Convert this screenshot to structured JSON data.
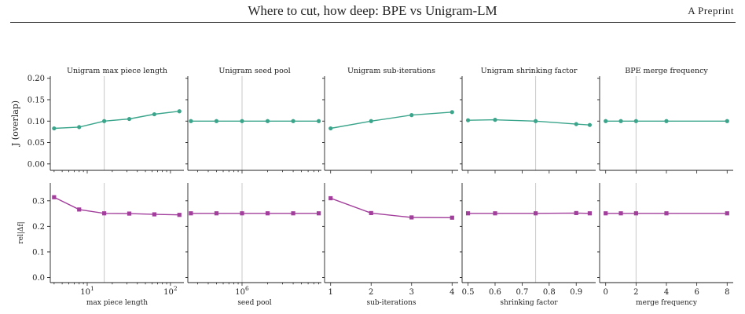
{
  "header": {
    "title": "Where to cut, how deep: BPE vs Unigram-LM",
    "right_label": "A Preprint"
  },
  "colors": {
    "top_series": "#3aa58b",
    "bottom_series": "#a23e9b",
    "ref_line": "#c8c8c8"
  },
  "shared_axes": {
    "top_ylabel": "J (overlap)",
    "bottom_ylabel": "rel|Δf|",
    "top_yticks": [
      "0.00",
      "0.05",
      "0.10",
      "0.15",
      "0.20"
    ],
    "bottom_yticks": [
      "0.0",
      "0.1",
      "0.2",
      "0.3"
    ]
  },
  "chart_data": [
    {
      "type": "line",
      "title": "Unigram max piece length",
      "xlabel": "max piece length",
      "xscale": "log",
      "xticks": [
        {
          "v": 10,
          "label": "10^1"
        },
        {
          "v": 100,
          "label": "10^2"
        }
      ],
      "xlim": [
        3.6,
        145
      ],
      "reference_x": 16,
      "series": [
        {
          "panel": "top",
          "x": [
            4,
            8,
            16,
            32,
            64,
            128
          ],
          "y": [
            0.083,
            0.086,
            0.1,
            0.105,
            0.116,
            0.123
          ]
        },
        {
          "panel": "bottom",
          "x": [
            4,
            8,
            16,
            32,
            64,
            128
          ],
          "y": [
            0.314,
            0.266,
            0.251,
            0.25,
            0.247,
            0.245
          ]
        }
      ]
    },
    {
      "type": "line",
      "title": "Unigram seed pool",
      "xlabel": "seed pool",
      "xscale": "log",
      "xticks": [
        {
          "v": 1000000,
          "label": "10^6"
        }
      ],
      "xlim": [
        230000,
        8600000
      ],
      "reference_x": 1000000,
      "series": [
        {
          "panel": "top",
          "x": [
            250000,
            500000,
            1000000,
            2000000,
            4000000,
            8000000
          ],
          "y": [
            0.1,
            0.1,
            0.1,
            0.1,
            0.1,
            0.1
          ]
        },
        {
          "panel": "bottom",
          "x": [
            250000,
            500000,
            1000000,
            2000000,
            4000000,
            8000000
          ],
          "y": [
            0.251,
            0.251,
            0.251,
            0.251,
            0.251,
            0.251
          ]
        }
      ]
    },
    {
      "type": "line",
      "title": "Unigram sub-iterations",
      "xlabel": "sub-iterations",
      "xscale": "linear",
      "xticks": [
        {
          "v": 1,
          "label": "1"
        },
        {
          "v": 2,
          "label": "2"
        },
        {
          "v": 3,
          "label": "3"
        },
        {
          "v": 4,
          "label": "4"
        }
      ],
      "xlim": [
        0.85,
        4.15
      ],
      "reference_x": null,
      "series": [
        {
          "panel": "top",
          "x": [
            1,
            2,
            3,
            4
          ],
          "y": [
            0.083,
            0.1,
            0.114,
            0.121
          ]
        },
        {
          "panel": "bottom",
          "x": [
            1,
            2,
            3,
            4
          ],
          "y": [
            0.31,
            0.252,
            0.235,
            0.234
          ]
        }
      ]
    },
    {
      "type": "line",
      "title": "Unigram shrinking factor",
      "xlabel": "shrinking factor",
      "xscale": "linear",
      "xticks": [
        {
          "v": 0.5,
          "label": "0.5"
        },
        {
          "v": 0.6,
          "label": "0.6"
        },
        {
          "v": 0.7,
          "label": "0.7"
        },
        {
          "v": 0.8,
          "label": "0.8"
        },
        {
          "v": 0.9,
          "label": "0.9"
        }
      ],
      "xlim": [
        0.478,
        0.972
      ],
      "reference_x": 0.75,
      "series": [
        {
          "panel": "top",
          "x": [
            0.5,
            0.6,
            0.75,
            0.9,
            0.95
          ],
          "y": [
            0.102,
            0.103,
            0.1,
            0.093,
            0.091
          ]
        },
        {
          "panel": "bottom",
          "x": [
            0.5,
            0.6,
            0.75,
            0.9,
            0.95
          ],
          "y": [
            0.251,
            0.251,
            0.251,
            0.252,
            0.251
          ]
        }
      ]
    },
    {
      "type": "line",
      "title": "BPE merge frequency",
      "xlabel": "merge frequency",
      "xscale": "linear",
      "xticks": [
        {
          "v": 0,
          "label": "0"
        },
        {
          "v": 2,
          "label": "2"
        },
        {
          "v": 4,
          "label": "4"
        },
        {
          "v": 6,
          "label": "6"
        },
        {
          "v": 8,
          "label": "8"
        }
      ],
      "xlim": [
        -0.4,
        8.4
      ],
      "reference_x": 2,
      "series": [
        {
          "panel": "top",
          "x": [
            0,
            1,
            2,
            4,
            8
          ],
          "y": [
            0.1,
            0.1,
            0.1,
            0.1,
            0.1
          ]
        },
        {
          "panel": "bottom",
          "x": [
            0,
            1,
            2,
            4,
            8
          ],
          "y": [
            0.251,
            0.251,
            0.251,
            0.251,
            0.251
          ]
        }
      ]
    }
  ]
}
